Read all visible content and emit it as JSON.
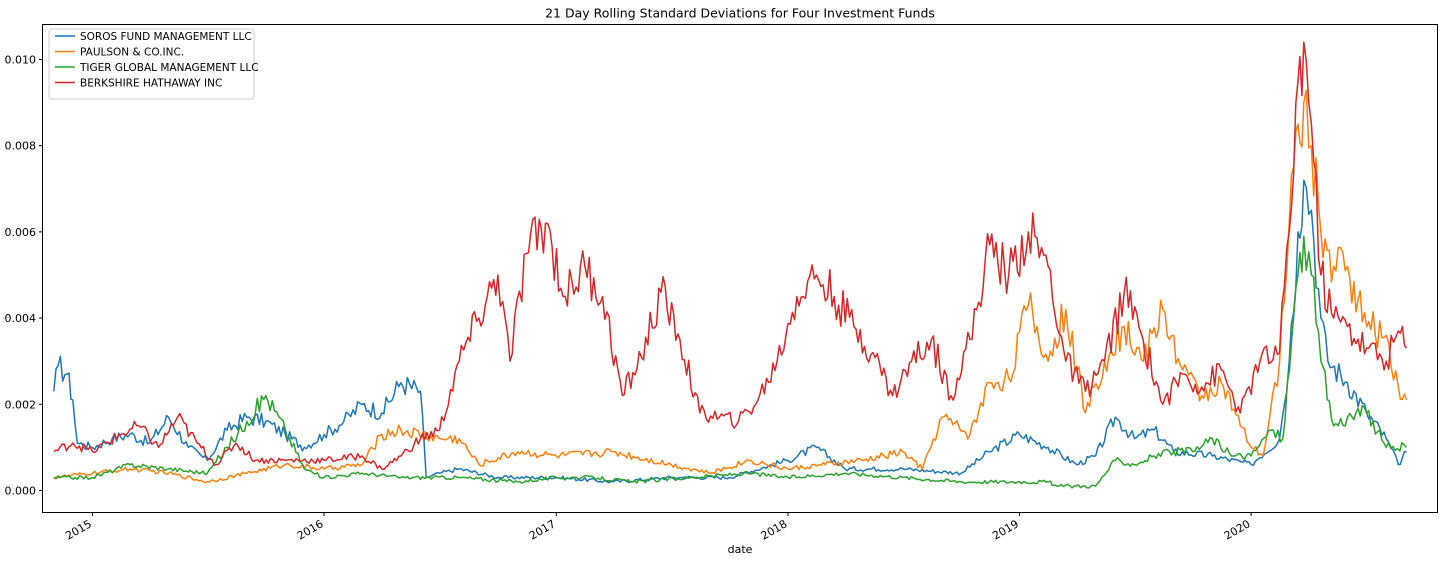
{
  "chart_data": {
    "type": "line",
    "title": "21 Day Rolling Standard Deviations for Four Investment Funds",
    "xlabel": "date",
    "ylabel": "",
    "xlim": [
      "2014-10-15",
      "2020-10-20"
    ],
    "ylim": [
      -0.0005,
      0.0108
    ],
    "x_ticks": [
      "2015",
      "2016",
      "2017",
      "2018",
      "2019",
      "2020"
    ],
    "y_ticks": [
      "0.000",
      "0.002",
      "0.004",
      "0.006",
      "0.008",
      "0.010"
    ],
    "grid": false,
    "legend_position": "top-left",
    "series": [
      {
        "name": "SOROS FUND MANAGEMENT LLC",
        "color": "#1f77b4",
        "points": [
          [
            "2014-11-01",
            0.0023
          ],
          [
            "2014-11-08",
            0.0029
          ],
          [
            "2014-11-22",
            0.0027
          ],
          [
            "2014-12-01",
            0.0021
          ],
          [
            "2014-12-08",
            0.0011
          ],
          [
            "2015-01-01",
            0.001
          ],
          [
            "2015-02-01",
            0.0012
          ],
          [
            "2015-03-01",
            0.0013
          ],
          [
            "2015-04-01",
            0.0011
          ],
          [
            "2015-05-01",
            0.0017
          ],
          [
            "2015-06-01",
            0.001
          ],
          [
            "2015-07-01",
            0.0007
          ],
          [
            "2015-08-01",
            0.0014
          ],
          [
            "2015-09-01",
            0.0017
          ],
          [
            "2015-10-01",
            0.0016
          ],
          [
            "2015-11-01",
            0.0013
          ],
          [
            "2015-12-01",
            0.001
          ],
          [
            "2016-01-01",
            0.0013
          ],
          [
            "2016-02-01",
            0.0016
          ],
          [
            "2016-03-01",
            0.002
          ],
          [
            "2016-04-01",
            0.0018
          ],
          [
            "2016-05-01",
            0.0025
          ],
          [
            "2016-06-01",
            0.0023
          ],
          [
            "2016-06-10",
            0.0003
          ],
          [
            "2016-07-01",
            0.0004
          ],
          [
            "2016-08-01",
            0.0005
          ],
          [
            "2016-10-01",
            0.0003
          ],
          [
            "2017-01-01",
            0.0003
          ],
          [
            "2017-04-01",
            0.0002
          ],
          [
            "2017-07-01",
            0.0003
          ],
          [
            "2017-10-01",
            0.0003
          ],
          [
            "2018-01-01",
            0.0007
          ],
          [
            "2018-02-15",
            0.001
          ],
          [
            "2018-04-01",
            0.0005
          ],
          [
            "2018-07-01",
            0.0005
          ],
          [
            "2018-10-01",
            0.0004
          ],
          [
            "2018-11-15",
            0.0009
          ],
          [
            "2019-01-01",
            0.0013
          ],
          [
            "2019-02-15",
            0.001
          ],
          [
            "2019-04-01",
            0.0006
          ],
          [
            "2019-05-01",
            0.0008
          ],
          [
            "2019-06-01",
            0.0017
          ],
          [
            "2019-07-01",
            0.0012
          ],
          [
            "2019-08-01",
            0.0014
          ],
          [
            "2019-09-01",
            0.0009
          ],
          [
            "2019-11-01",
            0.0008
          ],
          [
            "2020-01-01",
            0.0006
          ],
          [
            "2020-02-15",
            0.0012
          ],
          [
            "2020-03-01",
            0.003
          ],
          [
            "2020-03-15",
            0.006
          ],
          [
            "2020-03-24",
            0.0072
          ],
          [
            "2020-04-05",
            0.0065
          ],
          [
            "2020-04-20",
            0.004
          ],
          [
            "2020-05-01",
            0.003
          ],
          [
            "2020-06-01",
            0.0025
          ],
          [
            "2020-07-01",
            0.0018
          ],
          [
            "2020-08-01",
            0.0012
          ],
          [
            "2020-08-20",
            0.0006
          ],
          [
            "2020-09-02",
            0.0009
          ]
        ]
      },
      {
        "name": "PAULSON & CO.INC.",
        "color": "#ff7f0e",
        "points": [
          [
            "2014-11-01",
            0.0003
          ],
          [
            "2015-01-01",
            0.0004
          ],
          [
            "2015-03-01",
            0.0005
          ],
          [
            "2015-05-01",
            0.0004
          ],
          [
            "2015-07-01",
            0.0002
          ],
          [
            "2015-09-01",
            0.0004
          ],
          [
            "2015-11-01",
            0.0006
          ],
          [
            "2016-01-01",
            0.0005
          ],
          [
            "2016-03-01",
            0.0006
          ],
          [
            "2016-04-01",
            0.0013
          ],
          [
            "2016-05-01",
            0.0014
          ],
          [
            "2016-07-01",
            0.0012
          ],
          [
            "2016-08-01",
            0.0012
          ],
          [
            "2016-09-01",
            0.0006
          ],
          [
            "2016-11-01",
            0.0009
          ],
          [
            "2017-01-01",
            0.0008
          ],
          [
            "2017-04-01",
            0.0009
          ],
          [
            "2017-07-01",
            0.0006
          ],
          [
            "2017-09-01",
            0.0004
          ],
          [
            "2017-11-01",
            0.0007
          ],
          [
            "2018-01-01",
            0.0005
          ],
          [
            "2018-03-01",
            0.0006
          ],
          [
            "2018-05-01",
            0.0007
          ],
          [
            "2018-07-01",
            0.0009
          ],
          [
            "2018-08-01",
            0.0005
          ],
          [
            "2018-09-01",
            0.0017
          ],
          [
            "2018-10-15",
            0.0013
          ],
          [
            "2018-11-15",
            0.0025
          ],
          [
            "2018-12-15",
            0.0026
          ],
          [
            "2019-01-15",
            0.0043
          ],
          [
            "2019-02-15",
            0.003
          ],
          [
            "2019-03-15",
            0.0042
          ],
          [
            "2019-04-15",
            0.0018
          ],
          [
            "2019-05-15",
            0.003
          ],
          [
            "2019-06-15",
            0.0038
          ],
          [
            "2019-07-15",
            0.003
          ],
          [
            "2019-08-15",
            0.0042
          ],
          [
            "2019-09-15",
            0.0028
          ],
          [
            "2019-10-15",
            0.0022
          ],
          [
            "2019-11-15",
            0.0025
          ],
          [
            "2019-12-15",
            0.0015
          ],
          [
            "2020-01-01",
            0.001
          ],
          [
            "2020-01-20",
            0.0008
          ],
          [
            "2020-02-15",
            0.003
          ],
          [
            "2020-03-01",
            0.0062
          ],
          [
            "2020-03-15",
            0.0085
          ],
          [
            "2020-03-24",
            0.009
          ],
          [
            "2020-04-05",
            0.008
          ],
          [
            "2020-04-20",
            0.006
          ],
          [
            "2020-05-10",
            0.0052
          ],
          [
            "2020-06-01",
            0.0052
          ],
          [
            "2020-07-01",
            0.0038
          ],
          [
            "2020-08-01",
            0.0036
          ],
          [
            "2020-08-20",
            0.0024
          ],
          [
            "2020-09-02",
            0.0021
          ]
        ]
      },
      {
        "name": "TIGER GLOBAL MANAGEMENT LLC",
        "color": "#2ca02c",
        "points": [
          [
            "2014-11-01",
            0.0003
          ],
          [
            "2015-01-01",
            0.0003
          ],
          [
            "2015-03-01",
            0.0006
          ],
          [
            "2015-05-01",
            0.0005
          ],
          [
            "2015-07-01",
            0.0004
          ],
          [
            "2015-08-01",
            0.001
          ],
          [
            "2015-09-01",
            0.0016
          ],
          [
            "2015-10-01",
            0.0022
          ],
          [
            "2015-11-01",
            0.0014
          ],
          [
            "2015-12-01",
            0.0005
          ],
          [
            "2016-01-01",
            0.0003
          ],
          [
            "2016-03-01",
            0.0004
          ],
          [
            "2016-05-01",
            0.0003
          ],
          [
            "2016-08-01",
            0.0003
          ],
          [
            "2016-11-01",
            0.0002
          ],
          [
            "2017-01-01",
            0.0003
          ],
          [
            "2017-03-01",
            0.0003
          ],
          [
            "2017-05-01",
            0.0002
          ],
          [
            "2017-08-01",
            0.0003
          ],
          [
            "2017-11-01",
            0.0004
          ],
          [
            "2018-01-01",
            0.0003
          ],
          [
            "2018-04-01",
            0.0004
          ],
          [
            "2018-07-01",
            0.0003
          ],
          [
            "2018-10-01",
            0.0002
          ],
          [
            "2019-01-01",
            0.0002
          ],
          [
            "2019-02-15",
            0.0002
          ],
          [
            "2019-03-01",
            0.0001
          ],
          [
            "2019-05-01",
            0.0001
          ],
          [
            "2019-06-01",
            0.0007
          ],
          [
            "2019-07-01",
            0.0006
          ],
          [
            "2019-08-01",
            0.0008
          ],
          [
            "2019-09-01",
            0.0009
          ],
          [
            "2019-10-01",
            0.0009
          ],
          [
            "2019-11-01",
            0.0012
          ],
          [
            "2019-12-01",
            0.0008
          ],
          [
            "2020-01-01",
            0.0008
          ],
          [
            "2020-02-01",
            0.0014
          ],
          [
            "2020-02-20",
            0.0012
          ],
          [
            "2020-03-05",
            0.0035
          ],
          [
            "2020-03-15",
            0.005
          ],
          [
            "2020-03-24",
            0.0059
          ],
          [
            "2020-04-05",
            0.005
          ],
          [
            "2020-04-20",
            0.003
          ],
          [
            "2020-05-10",
            0.0015
          ],
          [
            "2020-06-01",
            0.0017
          ],
          [
            "2020-07-01",
            0.0018
          ],
          [
            "2020-08-01",
            0.001
          ],
          [
            "2020-09-02",
            0.001
          ]
        ]
      },
      {
        "name": "BERKSHIRE HATHAWAY INC",
        "color": "#d62728",
        "points": [
          [
            "2014-11-01",
            0.0009
          ],
          [
            "2014-12-01",
            0.0011
          ],
          [
            "2015-01-01",
            0.0009
          ],
          [
            "2015-02-15",
            0.0013
          ],
          [
            "2015-03-15",
            0.0015
          ],
          [
            "2015-04-15",
            0.001
          ],
          [
            "2015-05-15",
            0.0017
          ],
          [
            "2015-06-15",
            0.0011
          ],
          [
            "2015-07-15",
            0.0006
          ],
          [
            "2015-08-15",
            0.0011
          ],
          [
            "2015-09-15",
            0.0007
          ],
          [
            "2015-11-01",
            0.0007
          ],
          [
            "2016-01-01",
            0.0007
          ],
          [
            "2016-03-01",
            0.0008
          ],
          [
            "2016-04-01",
            0.0005
          ],
          [
            "2016-05-01",
            0.0008
          ],
          [
            "2016-06-01",
            0.0012
          ],
          [
            "2016-07-01",
            0.0014
          ],
          [
            "2016-08-01",
            0.003
          ],
          [
            "2016-09-01",
            0.004
          ],
          [
            "2016-10-01",
            0.005
          ],
          [
            "2016-10-20",
            0.003
          ],
          [
            "2016-11-15",
            0.0055
          ],
          [
            "2016-12-15",
            0.0062
          ],
          [
            "2017-01-15",
            0.0045
          ],
          [
            "2017-02-15",
            0.0052
          ],
          [
            "2017-03-15",
            0.0045
          ],
          [
            "2017-04-15",
            0.0022
          ],
          [
            "2017-05-15",
            0.0031
          ],
          [
            "2017-06-15",
            0.0046
          ],
          [
            "2017-07-15",
            0.0035
          ],
          [
            "2017-08-15",
            0.0018
          ],
          [
            "2017-09-15",
            0.0017
          ],
          [
            "2017-10-15",
            0.0016
          ],
          [
            "2017-11-15",
            0.0021
          ],
          [
            "2017-12-15",
            0.003
          ],
          [
            "2018-01-15",
            0.0045
          ],
          [
            "2018-02-15",
            0.005
          ],
          [
            "2018-03-15",
            0.0045
          ],
          [
            "2018-04-15",
            0.0038
          ],
          [
            "2018-05-15",
            0.0032
          ],
          [
            "2018-06-15",
            0.0022
          ],
          [
            "2018-07-15",
            0.003
          ],
          [
            "2018-08-15",
            0.0035
          ],
          [
            "2018-09-15",
            0.0022
          ],
          [
            "2018-10-15",
            0.0035
          ],
          [
            "2018-11-15",
            0.0057
          ],
          [
            "2018-12-15",
            0.005
          ],
          [
            "2019-01-15",
            0.006
          ],
          [
            "2019-02-15",
            0.0052
          ],
          [
            "2019-03-15",
            0.003
          ],
          [
            "2019-04-15",
            0.0023
          ],
          [
            "2019-05-15",
            0.003
          ],
          [
            "2019-06-15",
            0.0046
          ],
          [
            "2019-07-15",
            0.0035
          ],
          [
            "2019-08-15",
            0.002
          ],
          [
            "2019-09-15",
            0.0027
          ],
          [
            "2019-10-15",
            0.0024
          ],
          [
            "2019-11-15",
            0.0028
          ],
          [
            "2019-12-15",
            0.0018
          ],
          [
            "2020-01-15",
            0.003
          ],
          [
            "2020-02-15",
            0.0032
          ],
          [
            "2020-03-01",
            0.006
          ],
          [
            "2020-03-15",
            0.0095
          ],
          [
            "2020-03-24",
            0.0104
          ],
          [
            "2020-04-05",
            0.0085
          ],
          [
            "2020-04-20",
            0.005
          ],
          [
            "2020-05-10",
            0.004
          ],
          [
            "2020-06-01",
            0.0038
          ],
          [
            "2020-07-01",
            0.0033
          ],
          [
            "2020-08-01",
            0.003
          ],
          [
            "2020-08-20",
            0.0037
          ],
          [
            "2020-09-02",
            0.0033
          ]
        ]
      }
    ]
  }
}
